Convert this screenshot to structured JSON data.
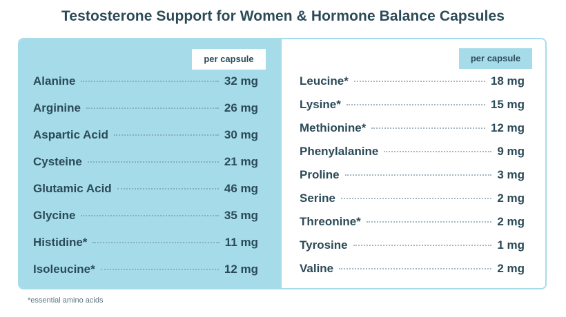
{
  "title": "Testosterone Support for Women & Hormone Balance Capsules",
  "colors": {
    "accent_blue": "#a6dcea",
    "text": "#2b4a57"
  },
  "left_column": {
    "header": "per capsule",
    "rows": [
      {
        "name": "Alanine",
        "amount": "32 mg"
      },
      {
        "name": "Arginine",
        "amount": "26 mg"
      },
      {
        "name": "Aspartic Acid",
        "amount": "30 mg"
      },
      {
        "name": "Cysteine",
        "amount": "21 mg"
      },
      {
        "name": "Glutamic Acid",
        "amount": "46 mg"
      },
      {
        "name": "Glycine",
        "amount": "35 mg"
      },
      {
        "name": "Histidine*",
        "amount": "11 mg"
      },
      {
        "name": "Isoleucine*",
        "amount": "12 mg"
      }
    ]
  },
  "right_column": {
    "header": "per capsule",
    "rows": [
      {
        "name": "Leucine*",
        "amount": "18 mg"
      },
      {
        "name": "Lysine*",
        "amount": "15 mg"
      },
      {
        "name": "Methionine*",
        "amount": "12 mg"
      },
      {
        "name": "Phenylalanine",
        "amount": "9 mg"
      },
      {
        "name": "Proline",
        "amount": "3 mg"
      },
      {
        "name": "Serine",
        "amount": "2 mg"
      },
      {
        "name": "Threonine*",
        "amount": "2 mg"
      },
      {
        "name": "Tyrosine",
        "amount": "1 mg"
      },
      {
        "name": "Valine",
        "amount": "2 mg"
      }
    ]
  },
  "footnote": "*essential amino acids"
}
